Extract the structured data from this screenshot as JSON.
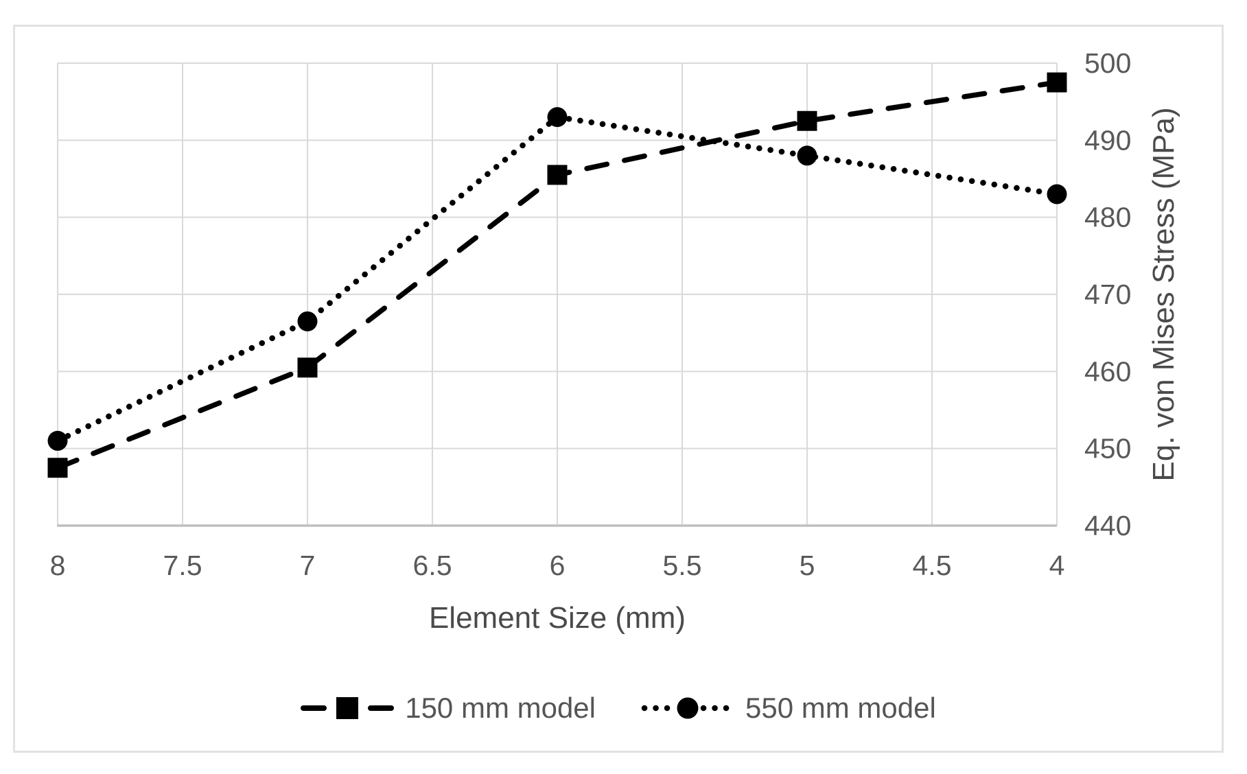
{
  "chart_data": {
    "type": "line",
    "title": "",
    "xlabel": "Element Size (mm)",
    "ylabel": "Eq. von Mises Stress (MPa)",
    "x": [
      8,
      7,
      6,
      5,
      4
    ],
    "series": [
      {
        "name": "150 mm model",
        "marker": "square",
        "line_style": "dashed",
        "values": [
          447.5,
          460.5,
          485.5,
          492.5,
          497.5
        ]
      },
      {
        "name": "550 mm model",
        "marker": "circle",
        "line_style": "dotted",
        "values": [
          451,
          466.5,
          493,
          488,
          483
        ]
      }
    ],
    "x_ticks": [
      "8",
      "7.5",
      "7",
      "6.5",
      "6",
      "5.5",
      "5",
      "4.5",
      "4"
    ],
    "y_ticks": [
      "440",
      "450",
      "460",
      "470",
      "480",
      "490",
      "500"
    ],
    "xlim": [
      8,
      4
    ],
    "ylim": [
      440,
      500
    ],
    "x_axis_reversed": true,
    "y_axis_side": "right",
    "grid": true,
    "legend_position": "bottom"
  },
  "styles": {
    "series_color": "#000000",
    "grid_color": "#d9d9d9",
    "axis_line_color": "#bfbfbf",
    "tick_label_color": "#595959",
    "axis_title_color": "#4a4a4a",
    "legend_text_color": "#555555",
    "figure_border_color": "#e2e2e2",
    "background": "#ffffff"
  }
}
